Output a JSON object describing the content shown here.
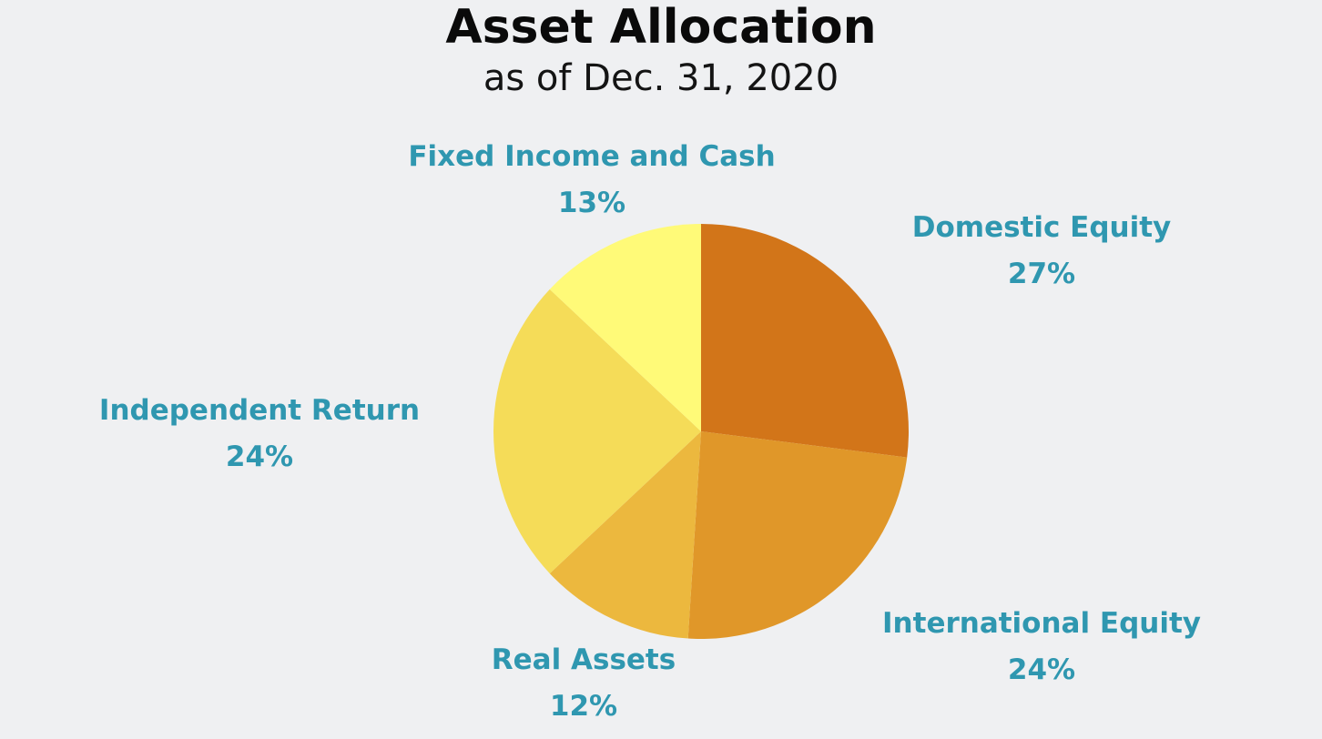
{
  "chart_data": {
    "type": "pie",
    "title": "Asset Allocation",
    "subtitle": "as of Dec. 31, 2020",
    "slices": [
      {
        "key": "domestic",
        "label": "Domestic Equity",
        "value": 27,
        "value_label": "27%",
        "color": "#d27519"
      },
      {
        "key": "international",
        "label": "International Equity",
        "value": 24,
        "value_label": "24%",
        "color": "#e09729"
      },
      {
        "key": "real",
        "label": "Real Assets",
        "value": 12,
        "value_label": "12%",
        "color": "#ecb83e"
      },
      {
        "key": "independent",
        "label": "Independent Return",
        "value": 24,
        "value_label": "24%",
        "color": "#f5dc58"
      },
      {
        "key": "fixed",
        "label": "Fixed Income and Cash",
        "value": 13,
        "value_label": "13%",
        "color": "#fffa78"
      }
    ],
    "label_color": "#2f97b0"
  }
}
